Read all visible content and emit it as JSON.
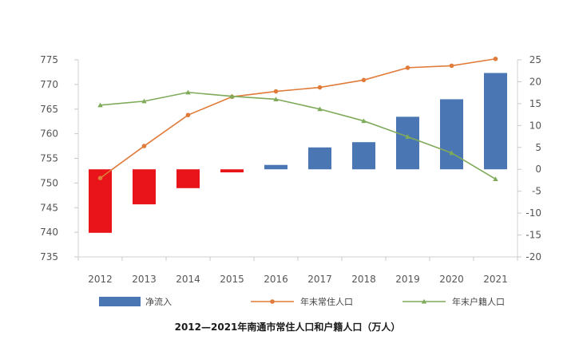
{
  "chart_data": {
    "type": "bar+line",
    "title": "2012—2021年南通市常住人口和户籍人口（万人）",
    "categories": [
      "2012",
      "2013",
      "2014",
      "2015",
      "2016",
      "2017",
      "2018",
      "2019",
      "2020",
      "2021"
    ],
    "left_axis": {
      "ticks": [
        775,
        770,
        765,
        760,
        755,
        750,
        745,
        740,
        735
      ],
      "range": [
        735,
        775
      ]
    },
    "right_axis": {
      "ticks": [
        25,
        20,
        15,
        10,
        5,
        0,
        -5,
        -10,
        -15,
        -20
      ],
      "range": [
        -20,
        25
      ]
    },
    "series": [
      {
        "name": "净流入",
        "kind": "bar",
        "axis": "right",
        "values": [
          -14.5,
          -8,
          -4.3,
          -0.7,
          1,
          5,
          6.2,
          12,
          16,
          22
        ],
        "color_positive": "#4a77b4",
        "color_negative": "#e8141a"
      },
      {
        "name": "年末常住人口",
        "kind": "line",
        "axis": "left",
        "values": [
          751,
          757.5,
          763.8,
          767.5,
          768.6,
          769.4,
          770.9,
          773.4,
          773.8,
          775.2
        ],
        "color": "#e07b39"
      },
      {
        "name": "年末户籍人口",
        "kind": "line",
        "axis": "left",
        "values": [
          765.8,
          766.6,
          768.4,
          767.6,
          767.0,
          765.0,
          762.6,
          759.4,
          756.1,
          750.8
        ],
        "color": "#7faa5a"
      }
    ],
    "legend": {
      "placement": "bottom"
    },
    "grid": false
  }
}
